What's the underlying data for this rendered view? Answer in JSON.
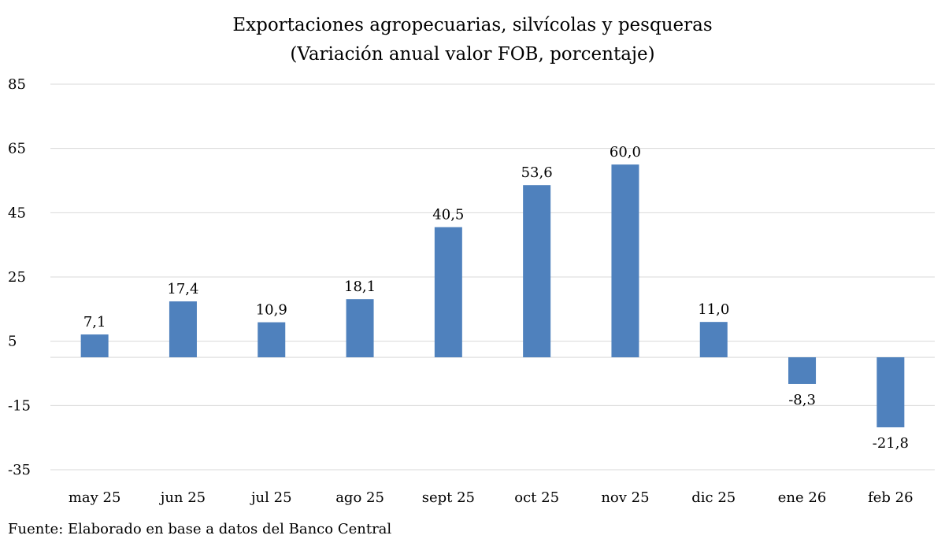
{
  "chart_data": {
    "type": "bar",
    "title": "Exportaciones agropecuarias, silvícolas y pesqueras",
    "subtitle": "(Variación anual valor FOB, porcentaje)",
    "xlabel": "",
    "ylabel": "",
    "categories": [
      "may 25",
      "jun 25",
      "jul 25",
      "ago 25",
      "sept 25",
      "oct 25",
      "nov 25",
      "dic 25",
      "ene 26",
      "feb 26"
    ],
    "values": [
      7.1,
      17.4,
      10.9,
      18.1,
      40.5,
      53.6,
      60.0,
      11.0,
      -8.3,
      -21.8
    ],
    "data_labels": [
      "7,1",
      "17,4",
      "10,9",
      "18,1",
      "40,5",
      "53,6",
      "60,0",
      "11,0",
      "-8,3",
      "-21,8"
    ],
    "ylim": [
      -35,
      85
    ],
    "yticks": [
      85,
      65,
      45,
      25,
      5,
      -15,
      -35
    ],
    "grid": true,
    "legend": "none",
    "bar_color": "#4f81bd",
    "grid_color": "#d9d9d9"
  },
  "source": "Fuente: Elaborado en base a datos del Banco Central"
}
